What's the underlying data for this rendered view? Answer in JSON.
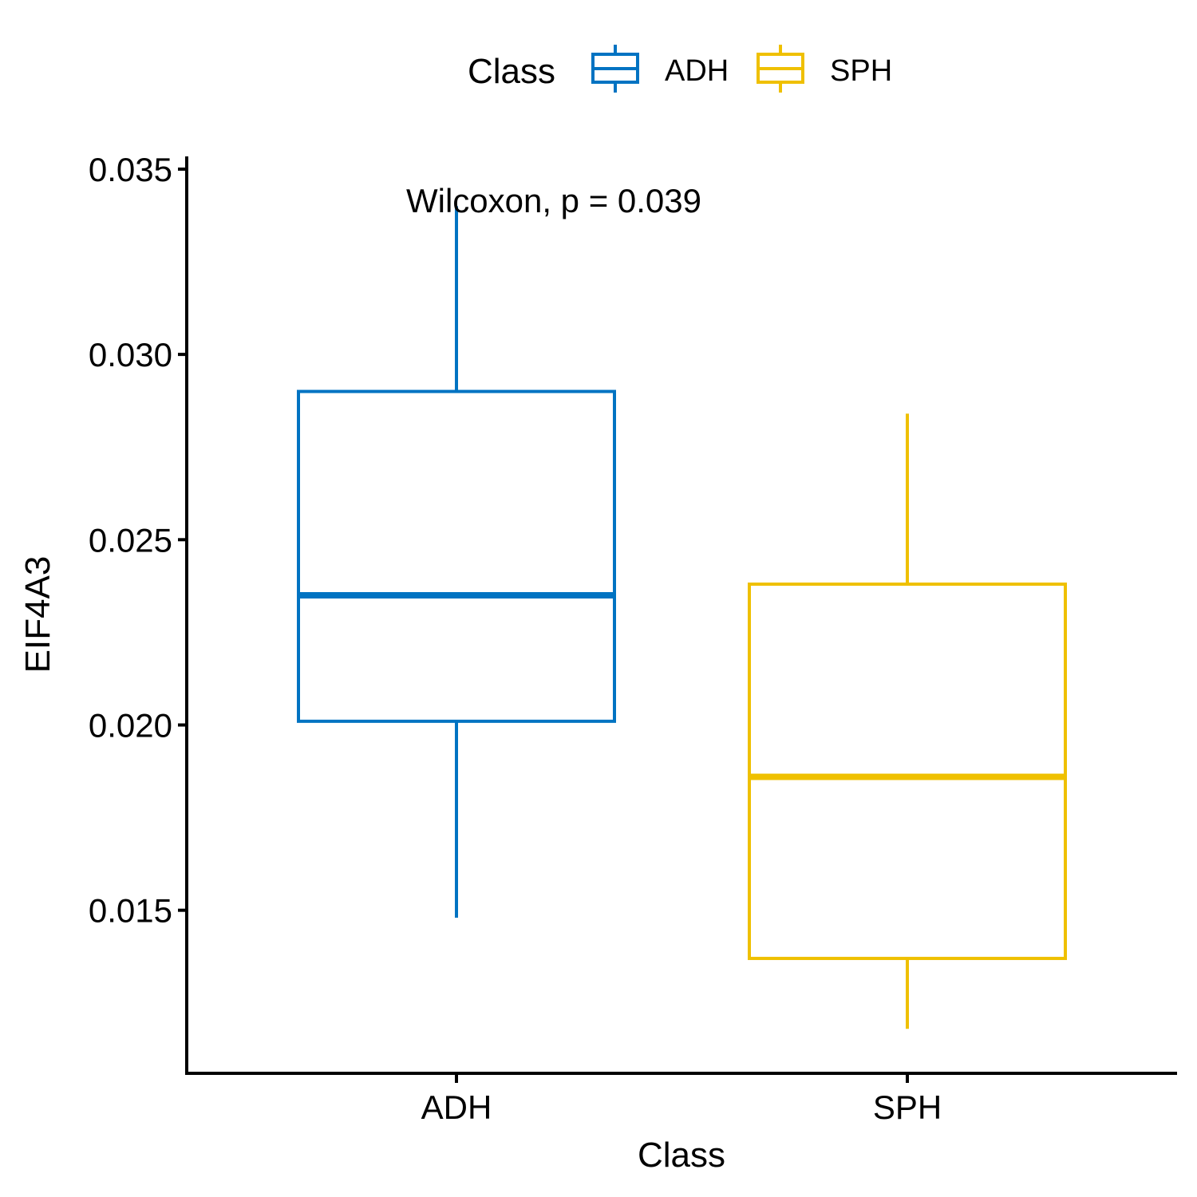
{
  "chart_data": {
    "type": "boxplot",
    "title": "",
    "xlabel": "Class",
    "ylabel": "EIF4A3",
    "ylim": [
      0.0106,
      0.0353
    ],
    "yticks": [
      0.015,
      0.02,
      0.025,
      0.03,
      0.035
    ],
    "ytick_labels": [
      "0.015",
      "0.020",
      "0.025",
      "0.030",
      "0.035"
    ],
    "categories": [
      "ADH",
      "SPH"
    ],
    "annotation": "Wilcoxon, p = 0.039",
    "legend": {
      "title": "Class",
      "position": "top",
      "entries": [
        "ADH",
        "SPH"
      ]
    },
    "grid": false,
    "series": [
      {
        "name": "ADH",
        "color": "#0073C2",
        "whisker_low": 0.0148,
        "q1": 0.0201,
        "median": 0.0235,
        "q3": 0.029,
        "whisker_high": 0.034
      },
      {
        "name": "SPH",
        "color": "#EFC000",
        "whisker_low": 0.0118,
        "q1": 0.0137,
        "median": 0.0186,
        "q3": 0.0238,
        "whisker_high": 0.0284
      }
    ]
  }
}
